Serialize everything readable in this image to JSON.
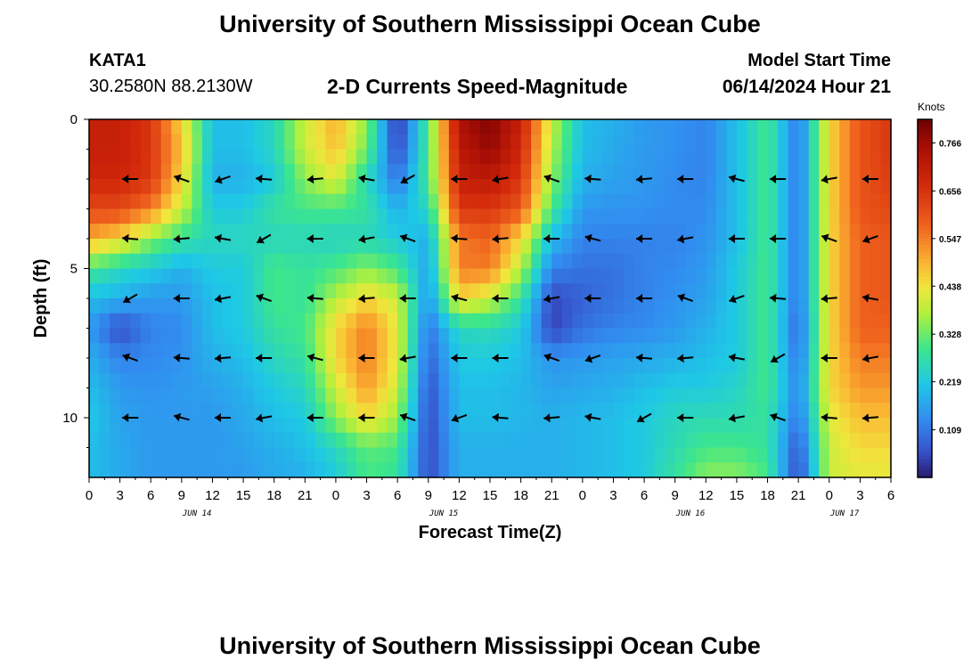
{
  "header": {
    "title": "University of Southern Mississippi Ocean Cube",
    "station": "KATA1",
    "coords": "30.2580N  88.2130W",
    "subtitle": "2-D Currents Speed-Magnitude",
    "model_start_label": "Model Start Time",
    "model_start_value": "06/14/2024 Hour 21"
  },
  "footer": {
    "title": "University of Southern Mississippi Ocean Cube"
  },
  "chart_data": {
    "type": "heatmap",
    "title": "2-D Currents Speed-Magnitude",
    "xlabel": "Forecast Time(Z)",
    "ylabel": "Depth (ft)",
    "colorbar_units": "Knots",
    "colorbar_ticks": [
      "0.766",
      "0.656",
      "0.547",
      "0.438",
      "0.328",
      "0.219",
      "0.109"
    ],
    "colorbar_values": [
      0.766,
      0.656,
      0.547,
      0.438,
      0.328,
      0.219,
      0.109
    ],
    "colorbar_range": [
      0.0,
      0.82
    ],
    "x_tick_labels": [
      "0",
      "3",
      "6",
      "9",
      "12",
      "15",
      "18",
      "21",
      "0",
      "3",
      "6",
      "9",
      "12",
      "15",
      "18",
      "21",
      "0",
      "3",
      "6",
      "9",
      "12",
      "15",
      "18",
      "21",
      "0",
      "3",
      "6"
    ],
    "x_hours": [
      0,
      78
    ],
    "date_labels": [
      "JUN 14",
      "JUN 15",
      "JUN 16",
      "JUN 17"
    ],
    "date_label_hours": [
      10.5,
      34.5,
      58.5,
      73.5
    ],
    "y_tick_labels": [
      "0",
      "5",
      "10"
    ],
    "y_tick_values": [
      0,
      5,
      10
    ],
    "y_range_ft": [
      0,
      12
    ],
    "depths_ft": [
      0,
      1,
      2,
      3,
      4,
      5,
      6,
      7,
      8,
      9,
      10,
      11,
      12
    ],
    "hours": [
      0,
      3,
      6,
      9,
      12,
      15,
      18,
      21,
      24,
      27,
      30,
      33,
      36,
      39,
      42,
      45,
      48,
      51,
      54,
      57,
      60,
      63,
      66,
      69,
      72,
      75,
      78
    ],
    "speed_knots": [
      [
        0.7,
        0.7,
        0.65,
        0.45,
        0.2,
        0.2,
        0.25,
        0.4,
        0.5,
        0.35,
        0.02,
        0.3,
        0.75,
        0.8,
        0.7,
        0.4,
        0.2,
        0.18,
        0.15,
        0.14,
        0.12,
        0.2,
        0.3,
        0.1,
        0.45,
        0.6,
        0.65
      ],
      [
        0.7,
        0.7,
        0.65,
        0.48,
        0.2,
        0.2,
        0.25,
        0.4,
        0.48,
        0.33,
        0.04,
        0.3,
        0.72,
        0.78,
        0.68,
        0.38,
        0.2,
        0.17,
        0.15,
        0.14,
        0.12,
        0.2,
        0.3,
        0.1,
        0.45,
        0.6,
        0.65
      ],
      [
        0.68,
        0.68,
        0.65,
        0.45,
        0.18,
        0.18,
        0.22,
        0.35,
        0.42,
        0.25,
        0.1,
        0.3,
        0.7,
        0.72,
        0.65,
        0.35,
        0.18,
        0.16,
        0.15,
        0.13,
        0.12,
        0.2,
        0.3,
        0.1,
        0.45,
        0.6,
        0.64
      ],
      [
        0.62,
        0.62,
        0.55,
        0.4,
        0.22,
        0.22,
        0.28,
        0.3,
        0.3,
        0.28,
        0.18,
        0.25,
        0.65,
        0.65,
        0.6,
        0.3,
        0.15,
        0.14,
        0.14,
        0.13,
        0.13,
        0.2,
        0.3,
        0.1,
        0.45,
        0.6,
        0.62
      ],
      [
        0.5,
        0.45,
        0.35,
        0.28,
        0.25,
        0.25,
        0.25,
        0.25,
        0.24,
        0.25,
        0.22,
        0.18,
        0.55,
        0.58,
        0.45,
        0.2,
        0.12,
        0.12,
        0.12,
        0.12,
        0.14,
        0.2,
        0.3,
        0.1,
        0.45,
        0.58,
        0.6
      ],
      [
        0.3,
        0.25,
        0.22,
        0.18,
        0.22,
        0.22,
        0.3,
        0.28,
        0.3,
        0.35,
        0.3,
        0.16,
        0.55,
        0.55,
        0.38,
        0.12,
        0.1,
        0.1,
        0.12,
        0.13,
        0.15,
        0.22,
        0.3,
        0.1,
        0.45,
        0.58,
        0.6
      ],
      [
        0.2,
        0.18,
        0.15,
        0.15,
        0.2,
        0.22,
        0.3,
        0.28,
        0.38,
        0.45,
        0.4,
        0.14,
        0.45,
        0.4,
        0.28,
        0.05,
        0.08,
        0.1,
        0.12,
        0.14,
        0.16,
        0.22,
        0.3,
        0.1,
        0.45,
        0.58,
        0.6
      ],
      [
        0.15,
        0.05,
        0.12,
        0.13,
        0.2,
        0.22,
        0.28,
        0.3,
        0.45,
        0.55,
        0.42,
        0.1,
        0.25,
        0.26,
        0.22,
        0.04,
        0.1,
        0.12,
        0.13,
        0.15,
        0.18,
        0.22,
        0.3,
        0.08,
        0.45,
        0.58,
        0.58
      ],
      [
        0.18,
        0.12,
        0.13,
        0.14,
        0.18,
        0.2,
        0.25,
        0.28,
        0.45,
        0.55,
        0.42,
        0.08,
        0.22,
        0.22,
        0.2,
        0.14,
        0.15,
        0.16,
        0.17,
        0.18,
        0.2,
        0.22,
        0.3,
        0.1,
        0.45,
        0.55,
        0.55
      ],
      [
        0.2,
        0.15,
        0.14,
        0.15,
        0.16,
        0.18,
        0.22,
        0.25,
        0.4,
        0.52,
        0.4,
        0.06,
        0.2,
        0.2,
        0.19,
        0.16,
        0.17,
        0.18,
        0.2,
        0.22,
        0.22,
        0.24,
        0.3,
        0.12,
        0.45,
        0.52,
        0.52
      ],
      [
        0.22,
        0.16,
        0.15,
        0.15,
        0.15,
        0.17,
        0.2,
        0.22,
        0.35,
        0.45,
        0.36,
        0.05,
        0.2,
        0.2,
        0.19,
        0.18,
        0.19,
        0.2,
        0.22,
        0.25,
        0.26,
        0.26,
        0.28,
        0.1,
        0.42,
        0.48,
        0.48
      ],
      [
        0.2,
        0.17,
        0.15,
        0.15,
        0.15,
        0.16,
        0.18,
        0.2,
        0.25,
        0.32,
        0.3,
        0.05,
        0.18,
        0.18,
        0.18,
        0.18,
        0.19,
        0.2,
        0.22,
        0.26,
        0.3,
        0.3,
        0.28,
        0.06,
        0.4,
        0.45,
        0.45
      ],
      [
        0.2,
        0.17,
        0.15,
        0.15,
        0.15,
        0.15,
        0.17,
        0.18,
        0.22,
        0.3,
        0.28,
        0.05,
        0.18,
        0.18,
        0.18,
        0.18,
        0.19,
        0.2,
        0.22,
        0.28,
        0.35,
        0.35,
        0.3,
        0.04,
        0.4,
        0.42,
        0.42
      ]
    ],
    "vector_rows_ft": [
      2,
      4,
      6,
      8,
      10
    ],
    "vector_hours": [
      4,
      9,
      13,
      17,
      22,
      27,
      31,
      36,
      40,
      45,
      49,
      54,
      58,
      63,
      67,
      72,
      76
    ]
  }
}
